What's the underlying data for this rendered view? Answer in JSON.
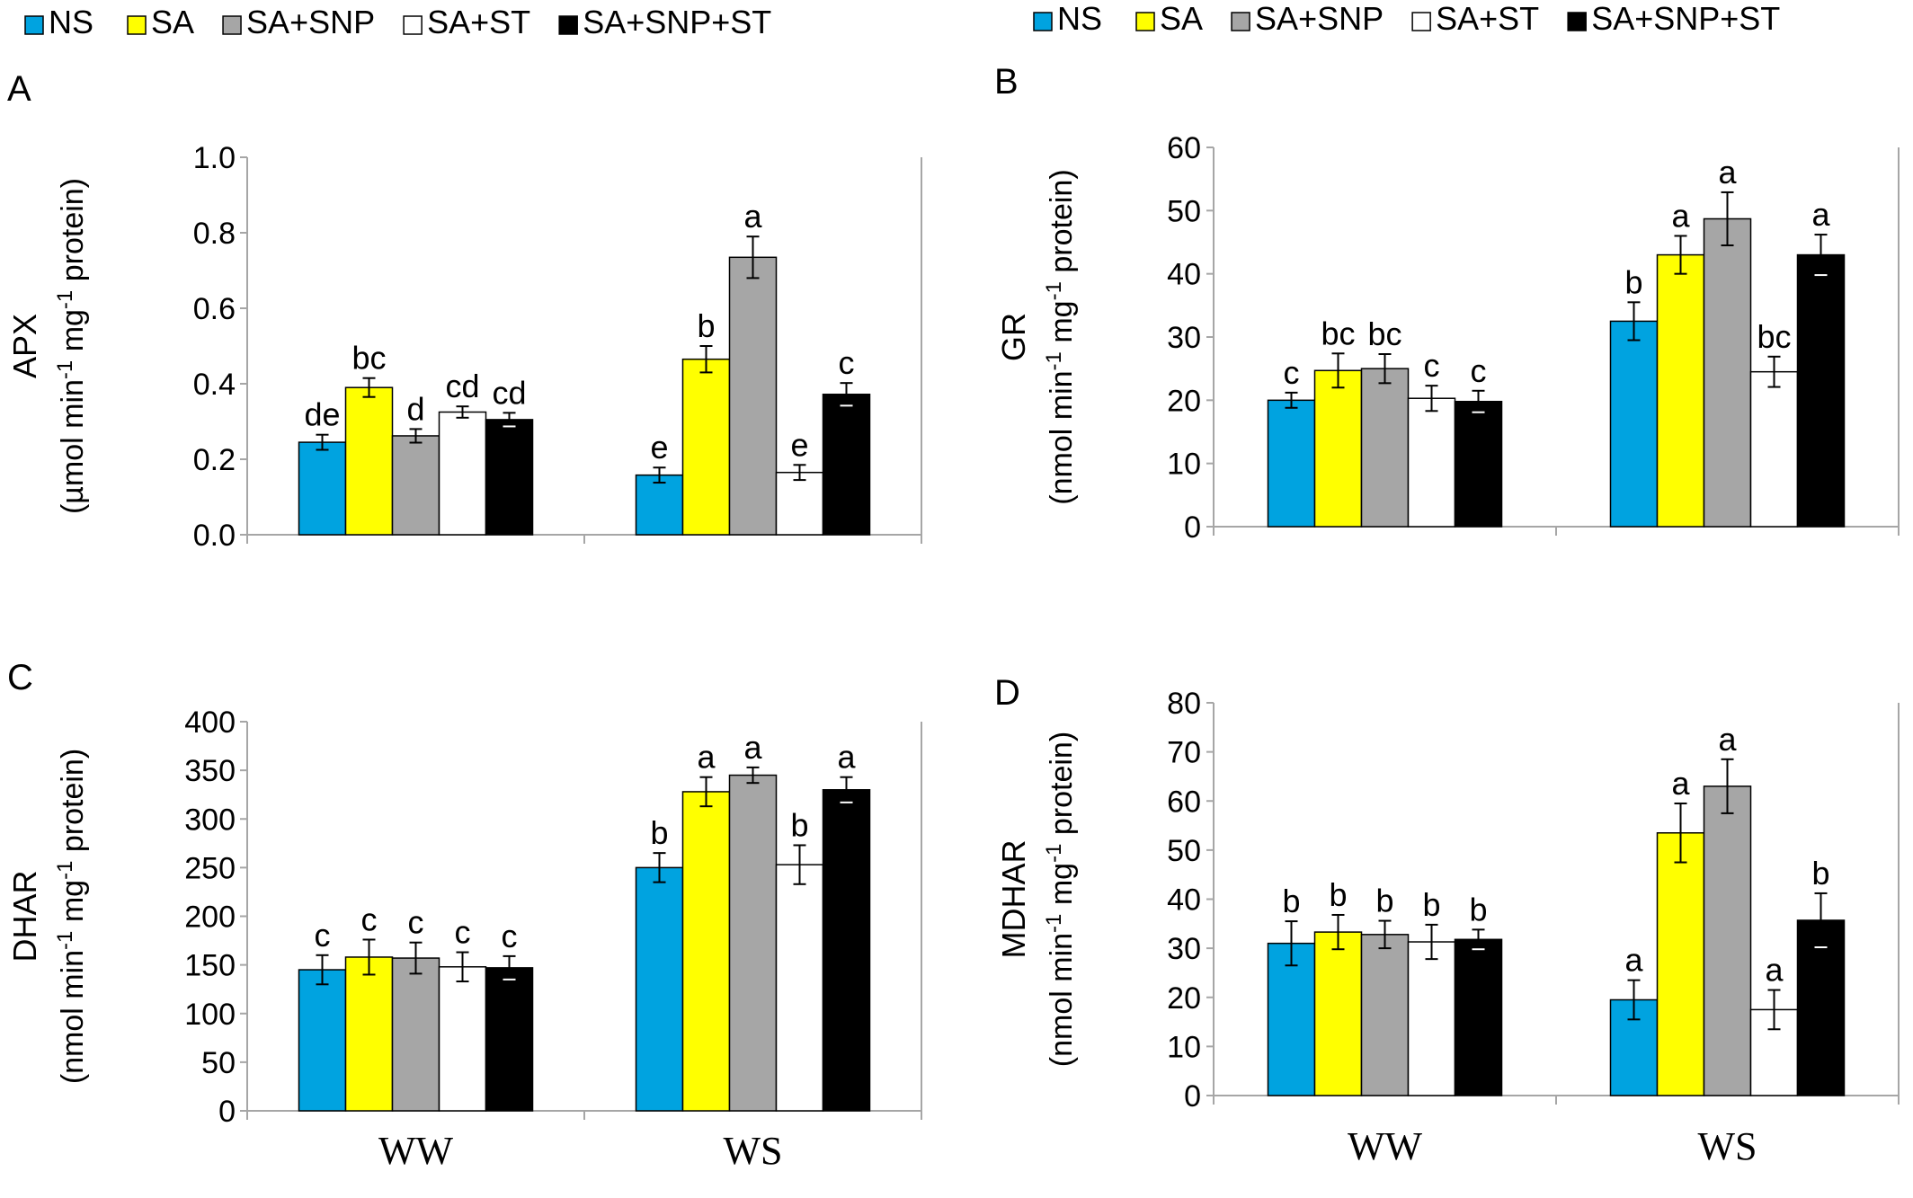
{
  "legend_colors": {
    "NS": "#00a3e0",
    "SA": "#ffff00",
    "SA+SNP": "#a6a6a6",
    "SA+ST": "#ffffff",
    "SA+SNP+ST": "#000000"
  },
  "legend_labels": [
    "NS",
    "SA",
    "SA+SNP",
    "SA+ST",
    "SA+SNP+ST"
  ],
  "chart_data": [
    {
      "panel": "A",
      "type": "bar",
      "ylabel": "APX",
      "yunit_parts": [
        "(µmol min",
        "-1",
        " mg",
        "-1",
        " protein)"
      ],
      "ylim": [
        0,
        1.0
      ],
      "yticks": [
        "0.0",
        "0.2",
        "0.4",
        "0.6",
        "0.8",
        "1.0"
      ],
      "categories": [
        "WW",
        "WS"
      ],
      "show_category_labels": false,
      "series": [
        {
          "name": "NS",
          "values": [
            0.245,
            0.158
          ],
          "errors": [
            0.02,
            0.02
          ],
          "letters": [
            "de",
            "e"
          ]
        },
        {
          "name": "SA",
          "values": [
            0.39,
            0.465
          ],
          "errors": [
            0.025,
            0.035
          ],
          "letters": [
            "bc",
            "b"
          ]
        },
        {
          "name": "SA+SNP",
          "values": [
            0.262,
            0.735
          ],
          "errors": [
            0.018,
            0.055
          ],
          "letters": [
            "d",
            "a"
          ]
        },
        {
          "name": "SA+ST",
          "values": [
            0.325,
            0.165
          ],
          "errors": [
            0.015,
            0.02
          ],
          "letters": [
            "cd",
            "e"
          ]
        },
        {
          "name": "SA+SNP+ST",
          "values": [
            0.305,
            0.372
          ],
          "errors": [
            0.018,
            0.03
          ],
          "letters": [
            "cd",
            "c"
          ]
        }
      ]
    },
    {
      "panel": "B",
      "type": "bar",
      "ylabel": "GR",
      "yunit_parts": [
        "(nmol min",
        "-1",
        " mg",
        "-1",
        " protein)"
      ],
      "ylim": [
        0,
        60
      ],
      "yticks": [
        "0",
        "10",
        "20",
        "30",
        "40",
        "50",
        "60"
      ],
      "categories": [
        "WW",
        "WS"
      ],
      "show_category_labels": false,
      "series": [
        {
          "name": "NS",
          "values": [
            20,
            32.5
          ],
          "errors": [
            1.2,
            3.0
          ],
          "letters": [
            "c",
            "b"
          ]
        },
        {
          "name": "SA",
          "values": [
            24.7,
            43
          ],
          "errors": [
            2.7,
            3.0
          ],
          "letters": [
            "bc",
            "a"
          ]
        },
        {
          "name": "SA+SNP",
          "values": [
            25,
            48.7
          ],
          "errors": [
            2.3,
            4.2
          ],
          "letters": [
            "bc",
            "a"
          ]
        },
        {
          "name": "SA+ST",
          "values": [
            20.3,
            24.5
          ],
          "errors": [
            2.0,
            2.4
          ],
          "letters": [
            "c",
            "bc"
          ]
        },
        {
          "name": "SA+SNP+ST",
          "values": [
            19.8,
            43
          ],
          "errors": [
            1.7,
            3.2
          ],
          "letters": [
            "c",
            "a"
          ]
        }
      ]
    },
    {
      "panel": "C",
      "type": "bar",
      "ylabel": "DHAR",
      "yunit_parts": [
        "(nmol min",
        "-1",
        " mg",
        "-1",
        " protein)"
      ],
      "ylim": [
        0,
        400
      ],
      "yticks": [
        "0",
        "50",
        "100",
        "150",
        "200",
        "250",
        "300",
        "350",
        "400"
      ],
      "categories": [
        "WW",
        "WS"
      ],
      "show_category_labels": true,
      "series": [
        {
          "name": "NS",
          "values": [
            145,
            250
          ],
          "errors": [
            15,
            15
          ],
          "letters": [
            "c",
            "b"
          ]
        },
        {
          "name": "SA",
          "values": [
            158,
            328
          ],
          "errors": [
            18,
            15
          ],
          "letters": [
            "c",
            "a"
          ]
        },
        {
          "name": "SA+SNP",
          "values": [
            157,
            345
          ],
          "errors": [
            16,
            8
          ],
          "letters": [
            "c",
            "a"
          ]
        },
        {
          "name": "SA+ST",
          "values": [
            148,
            253
          ],
          "errors": [
            15,
            20
          ],
          "letters": [
            "c",
            "b"
          ]
        },
        {
          "name": "SA+SNP+ST",
          "values": [
            147,
            330
          ],
          "errors": [
            12,
            13
          ],
          "letters": [
            "c",
            "a"
          ]
        }
      ]
    },
    {
      "panel": "D",
      "type": "bar",
      "ylabel": "MDHAR",
      "yunit_parts": [
        "(nmol min",
        "-1",
        " mg",
        "-1",
        " protein)"
      ],
      "ylim": [
        0,
        80
      ],
      "yticks": [
        "0",
        "10",
        "20",
        "30",
        "40",
        "50",
        "60",
        "70",
        "80"
      ],
      "categories": [
        "WW",
        "WS"
      ],
      "show_category_labels": true,
      "series": [
        {
          "name": "NS",
          "values": [
            31,
            19.5
          ],
          "errors": [
            4.5,
            4.0
          ],
          "letters": [
            "b",
            "a"
          ]
        },
        {
          "name": "SA",
          "values": [
            33.3,
            53.5
          ],
          "errors": [
            3.5,
            6.0
          ],
          "letters": [
            "b",
            "a"
          ]
        },
        {
          "name": "SA+SNP",
          "values": [
            32.8,
            63
          ],
          "errors": [
            2.8,
            5.5
          ],
          "letters": [
            "b",
            "a"
          ]
        },
        {
          "name": "SA+ST",
          "values": [
            31.3,
            17.5
          ],
          "errors": [
            3.5,
            4.0
          ],
          "letters": [
            "b",
            "a"
          ]
        },
        {
          "name": "SA+SNP+ST",
          "values": [
            31.8,
            35.7
          ],
          "errors": [
            2.0,
            5.5
          ],
          "letters": [
            "b",
            "b"
          ]
        }
      ]
    }
  ]
}
